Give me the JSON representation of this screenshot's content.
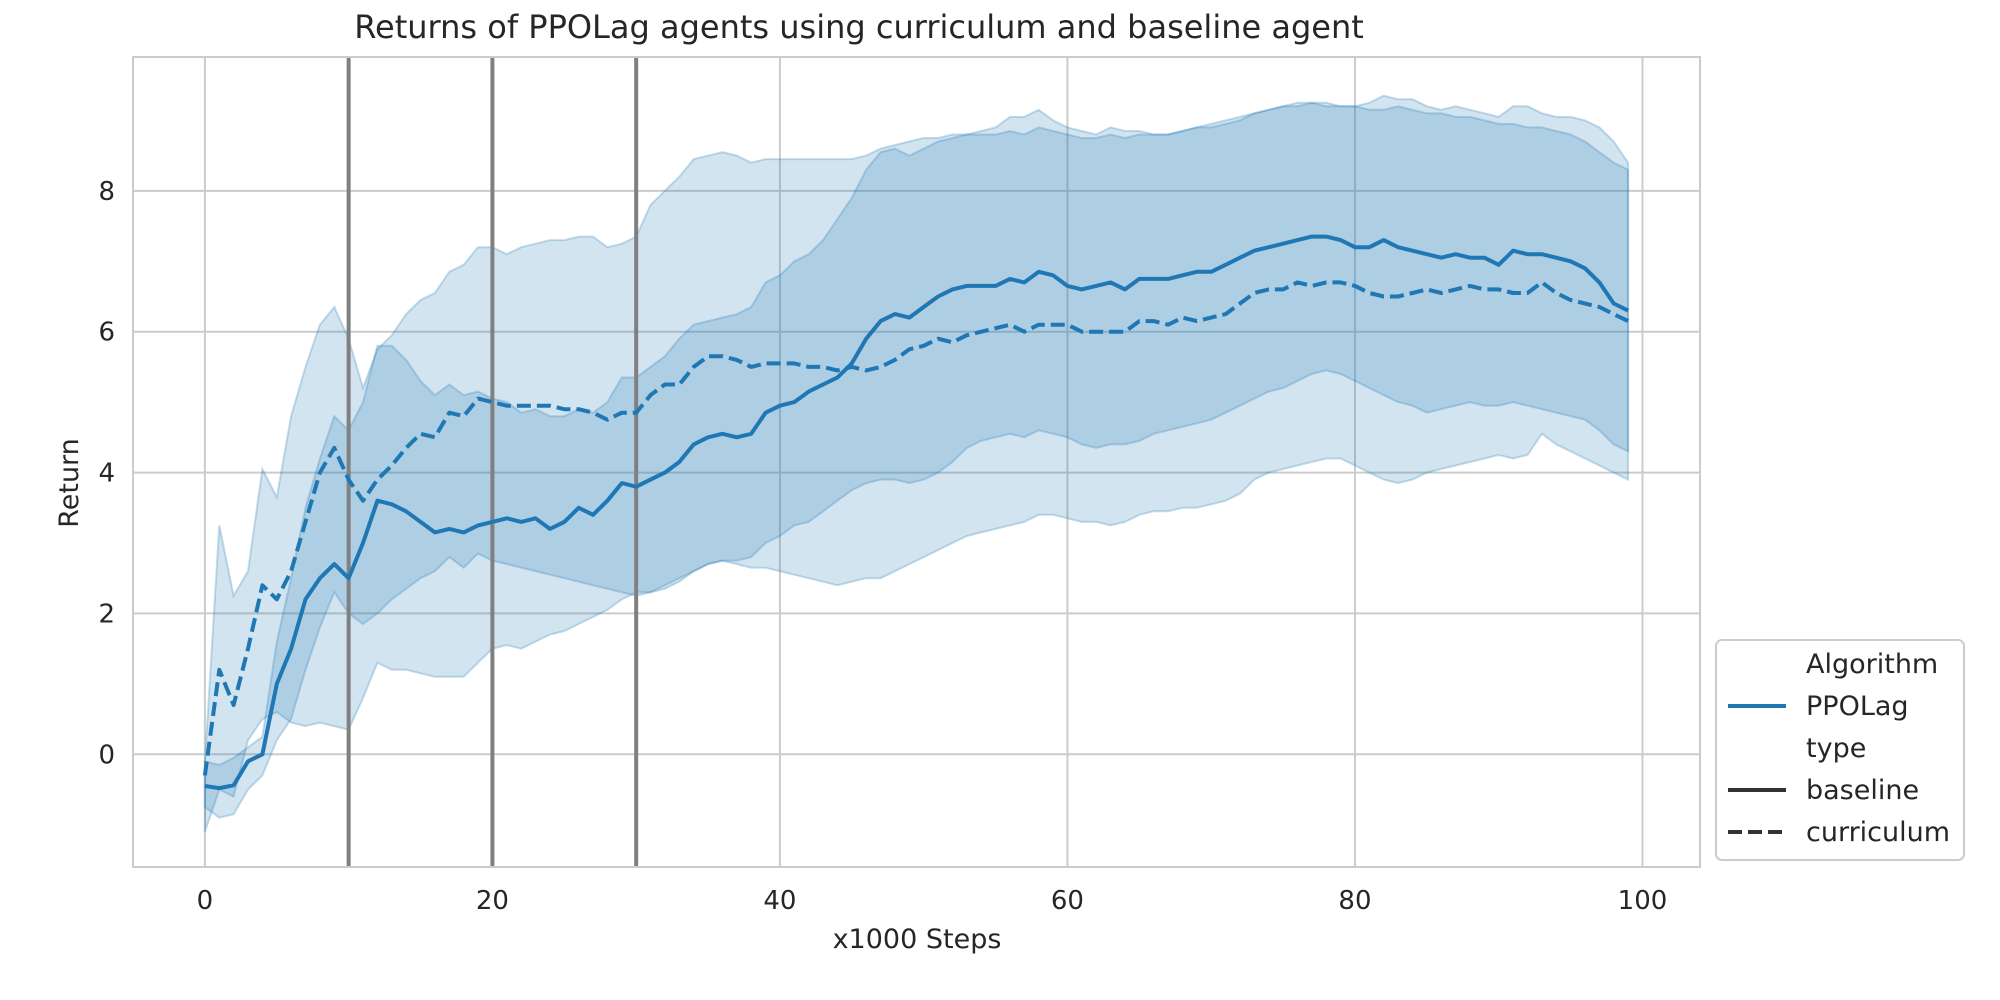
{
  "chart_data": {
    "type": "line",
    "title": "Returns of PPOLag agents using curriculum and baseline agent",
    "xlabel": "x1000 Steps",
    "ylabel": "Return",
    "xlim": [
      -5,
      104
    ],
    "ylim": [
      -1.6,
      9.9
    ],
    "xticks": [
      0,
      20,
      40,
      60,
      80,
      100
    ],
    "yticks": [
      0,
      2,
      4,
      6,
      8
    ],
    "grid": true,
    "vertical_markers": [
      10,
      20,
      30
    ],
    "legend": {
      "placement": "lower-right outside",
      "entries": [
        {
          "label": "Algorithm",
          "style": "header"
        },
        {
          "label": "PPOLag",
          "style": "line",
          "color": "#1f77b4"
        },
        {
          "label": "type",
          "style": "header"
        },
        {
          "label": "baseline",
          "style": "solid",
          "color": "#333333"
        },
        {
          "label": "curriculum",
          "style": "dashed",
          "color": "#333333"
        }
      ]
    },
    "series": [
      {
        "name": "baseline",
        "color": "#1f77b4",
        "dash": "solid",
        "x": [
          0,
          1,
          2,
          3,
          4,
          5,
          6,
          7,
          8,
          9,
          10,
          11,
          12,
          13,
          14,
          15,
          16,
          17,
          18,
          19,
          20,
          21,
          22,
          23,
          24,
          25,
          26,
          27,
          28,
          29,
          30,
          31,
          32,
          33,
          34,
          35,
          36,
          37,
          38,
          39,
          40,
          41,
          42,
          43,
          44,
          45,
          46,
          47,
          48,
          49,
          50,
          51,
          52,
          53,
          54,
          55,
          56,
          57,
          58,
          59,
          60,
          61,
          62,
          63,
          64,
          65,
          66,
          67,
          68,
          69,
          70,
          71,
          72,
          73,
          74,
          75,
          76,
          77,
          78,
          79,
          80,
          81,
          82,
          83,
          84,
          85,
          86,
          87,
          88,
          89,
          90,
          91,
          92,
          93,
          94,
          95,
          96,
          97,
          98,
          99
        ],
        "y": [
          -0.45,
          -0.48,
          -0.44,
          -0.1,
          0.0,
          1.0,
          1.5,
          2.2,
          2.5,
          2.7,
          2.5,
          3.0,
          3.6,
          3.55,
          3.45,
          3.3,
          3.15,
          3.2,
          3.15,
          3.25,
          3.3,
          3.35,
          3.3,
          3.35,
          3.2,
          3.3,
          3.5,
          3.4,
          3.6,
          3.85,
          3.8,
          3.9,
          4.0,
          4.15,
          4.4,
          4.5,
          4.55,
          4.5,
          4.55,
          4.85,
          4.95,
          5.0,
          5.15,
          5.25,
          5.35,
          5.55,
          5.9,
          6.15,
          6.25,
          6.2,
          6.35,
          6.5,
          6.6,
          6.65,
          6.65,
          6.65,
          6.75,
          6.7,
          6.85,
          6.8,
          6.65,
          6.6,
          6.65,
          6.7,
          6.6,
          6.75,
          6.75,
          6.75,
          6.8,
          6.85,
          6.85,
          6.95,
          7.05,
          7.15,
          7.2,
          7.25,
          7.3,
          7.35,
          7.35,
          7.3,
          7.2,
          7.2,
          7.3,
          7.2,
          7.15,
          7.1,
          7.05,
          7.1,
          7.05,
          7.05,
          6.95,
          7.15,
          7.1,
          7.1,
          7.05,
          7.0,
          6.9,
          6.7,
          6.4,
          6.3
        ],
        "lower": [
          -0.75,
          -0.9,
          -0.85,
          -0.5,
          -0.3,
          0.2,
          0.5,
          1.2,
          1.8,
          2.3,
          2.0,
          1.85,
          2.0,
          2.2,
          2.35,
          2.5,
          2.6,
          2.8,
          2.65,
          2.85,
          2.75,
          2.7,
          2.65,
          2.6,
          2.55,
          2.5,
          2.45,
          2.4,
          2.35,
          2.3,
          2.25,
          2.3,
          2.4,
          2.5,
          2.6,
          2.7,
          2.75,
          2.75,
          2.8,
          3.0,
          3.1,
          3.25,
          3.3,
          3.45,
          3.6,
          3.75,
          3.85,
          3.9,
          3.9,
          3.85,
          3.9,
          4.0,
          4.15,
          4.35,
          4.45,
          4.5,
          4.55,
          4.5,
          4.6,
          4.55,
          4.5,
          4.4,
          4.35,
          4.4,
          4.4,
          4.45,
          4.55,
          4.6,
          4.65,
          4.7,
          4.75,
          4.85,
          4.95,
          5.05,
          5.15,
          5.2,
          5.3,
          5.4,
          5.45,
          5.4,
          5.3,
          5.2,
          5.1,
          5.0,
          4.95,
          4.85,
          4.9,
          4.95,
          5.0,
          4.95,
          4.95,
          5.0,
          4.95,
          4.9,
          4.85,
          4.8,
          4.75,
          4.6,
          4.4,
          4.3
        ],
        "upper": [
          -0.1,
          -0.15,
          -0.05,
          0.1,
          0.25,
          1.6,
          2.5,
          3.5,
          4.2,
          4.8,
          4.6,
          5.0,
          5.8,
          5.8,
          5.6,
          5.3,
          5.1,
          5.25,
          5.1,
          5.15,
          5.05,
          5.0,
          4.85,
          4.9,
          4.8,
          4.8,
          4.9,
          4.85,
          5.0,
          5.35,
          5.35,
          5.5,
          5.65,
          5.9,
          6.1,
          6.15,
          6.2,
          6.25,
          6.35,
          6.7,
          6.8,
          7.0,
          7.1,
          7.3,
          7.6,
          7.9,
          8.3,
          8.55,
          8.6,
          8.5,
          8.6,
          8.7,
          8.75,
          8.8,
          8.8,
          8.8,
          8.85,
          8.8,
          8.9,
          8.85,
          8.8,
          8.75,
          8.75,
          8.8,
          8.75,
          8.8,
          8.8,
          8.8,
          8.85,
          8.9,
          8.9,
          8.95,
          9.0,
          9.1,
          9.15,
          9.2,
          9.2,
          9.25,
          9.2,
          9.2,
          9.2,
          9.15,
          9.15,
          9.2,
          9.15,
          9.1,
          9.1,
          9.05,
          9.05,
          9.0,
          8.95,
          8.95,
          8.9,
          8.9,
          8.85,
          8.8,
          8.7,
          8.55,
          8.4,
          8.3
        ]
      },
      {
        "name": "curriculum",
        "color": "#1f77b4",
        "dash": "dashed",
        "x": [
          0,
          1,
          2,
          3,
          4,
          5,
          6,
          7,
          8,
          9,
          10,
          11,
          12,
          13,
          14,
          15,
          16,
          17,
          18,
          19,
          20,
          21,
          22,
          23,
          24,
          25,
          26,
          27,
          28,
          29,
          30,
          31,
          32,
          33,
          34,
          35,
          36,
          37,
          38,
          39,
          40,
          41,
          42,
          43,
          44,
          45,
          46,
          47,
          48,
          49,
          50,
          51,
          52,
          53,
          54,
          55,
          56,
          57,
          58,
          59,
          60,
          61,
          62,
          63,
          64,
          65,
          66,
          67,
          68,
          69,
          70,
          71,
          72,
          73,
          74,
          75,
          76,
          77,
          78,
          79,
          80,
          81,
          82,
          83,
          84,
          85,
          86,
          87,
          88,
          89,
          90,
          91,
          92,
          93,
          94,
          95,
          96,
          97,
          98,
          99
        ],
        "y": [
          -0.3,
          1.2,
          0.7,
          1.5,
          2.4,
          2.2,
          2.6,
          3.3,
          4.0,
          4.35,
          3.9,
          3.6,
          3.9,
          4.1,
          4.35,
          4.55,
          4.5,
          4.85,
          4.8,
          5.05,
          5.0,
          4.95,
          4.95,
          4.95,
          4.95,
          4.9,
          4.9,
          4.85,
          4.75,
          4.85,
          4.85,
          5.1,
          5.25,
          5.25,
          5.5,
          5.65,
          5.65,
          5.6,
          5.5,
          5.55,
          5.55,
          5.55,
          5.5,
          5.5,
          5.45,
          5.5,
          5.45,
          5.5,
          5.6,
          5.75,
          5.8,
          5.9,
          5.85,
          5.95,
          6.0,
          6.05,
          6.1,
          6.0,
          6.1,
          6.1,
          6.1,
          6.0,
          6.0,
          6.0,
          6.0,
          6.15,
          6.15,
          6.1,
          6.2,
          6.15,
          6.2,
          6.25,
          6.4,
          6.55,
          6.6,
          6.6,
          6.7,
          6.65,
          6.7,
          6.7,
          6.65,
          6.55,
          6.5,
          6.5,
          6.55,
          6.6,
          6.55,
          6.6,
          6.65,
          6.6,
          6.6,
          6.55,
          6.55,
          6.7,
          6.55,
          6.45,
          6.4,
          6.35,
          6.25,
          6.15
        ],
        "lower": [
          -1.1,
          -0.5,
          -0.6,
          0.2,
          0.5,
          0.6,
          0.45,
          0.4,
          0.45,
          0.4,
          0.35,
          0.8,
          1.3,
          1.2,
          1.2,
          1.15,
          1.1,
          1.1,
          1.1,
          1.3,
          1.5,
          1.55,
          1.5,
          1.6,
          1.7,
          1.75,
          1.85,
          1.95,
          2.05,
          2.2,
          2.3,
          2.3,
          2.35,
          2.45,
          2.6,
          2.7,
          2.75,
          2.7,
          2.65,
          2.65,
          2.6,
          2.55,
          2.5,
          2.45,
          2.4,
          2.45,
          2.5,
          2.5,
          2.6,
          2.7,
          2.8,
          2.9,
          3.0,
          3.1,
          3.15,
          3.2,
          3.25,
          3.3,
          3.4,
          3.4,
          3.35,
          3.3,
          3.3,
          3.25,
          3.3,
          3.4,
          3.45,
          3.45,
          3.5,
          3.5,
          3.55,
          3.6,
          3.7,
          3.9,
          4.0,
          4.05,
          4.1,
          4.15,
          4.2,
          4.2,
          4.1,
          4.0,
          3.9,
          3.85,
          3.9,
          4.0,
          4.05,
          4.1,
          4.15,
          4.2,
          4.25,
          4.2,
          4.25,
          4.55,
          4.4,
          4.3,
          4.2,
          4.1,
          4.0,
          3.9
        ],
        "upper": [
          -0.1,
          3.25,
          2.25,
          2.6,
          4.05,
          3.65,
          4.8,
          5.5,
          6.1,
          6.35,
          5.9,
          5.2,
          5.75,
          5.95,
          6.25,
          6.45,
          6.55,
          6.85,
          6.95,
          7.2,
          7.2,
          7.1,
          7.2,
          7.25,
          7.3,
          7.3,
          7.35,
          7.35,
          7.2,
          7.25,
          7.35,
          7.8,
          8.0,
          8.2,
          8.45,
          8.5,
          8.55,
          8.5,
          8.4,
          8.45,
          8.45,
          8.45,
          8.45,
          8.45,
          8.45,
          8.45,
          8.5,
          8.6,
          8.65,
          8.7,
          8.75,
          8.75,
          8.8,
          8.8,
          8.85,
          8.9,
          9.05,
          9.05,
          9.15,
          9.0,
          8.9,
          8.85,
          8.8,
          8.9,
          8.85,
          8.85,
          8.8,
          8.8,
          8.85,
          8.9,
          8.95,
          9.0,
          9.05,
          9.1,
          9.15,
          9.2,
          9.25,
          9.25,
          9.25,
          9.2,
          9.2,
          9.25,
          9.35,
          9.3,
          9.3,
          9.2,
          9.15,
          9.2,
          9.15,
          9.1,
          9.05,
          9.2,
          9.2,
          9.1,
          9.05,
          9.05,
          9.0,
          8.9,
          8.7,
          8.4
        ]
      }
    ]
  }
}
